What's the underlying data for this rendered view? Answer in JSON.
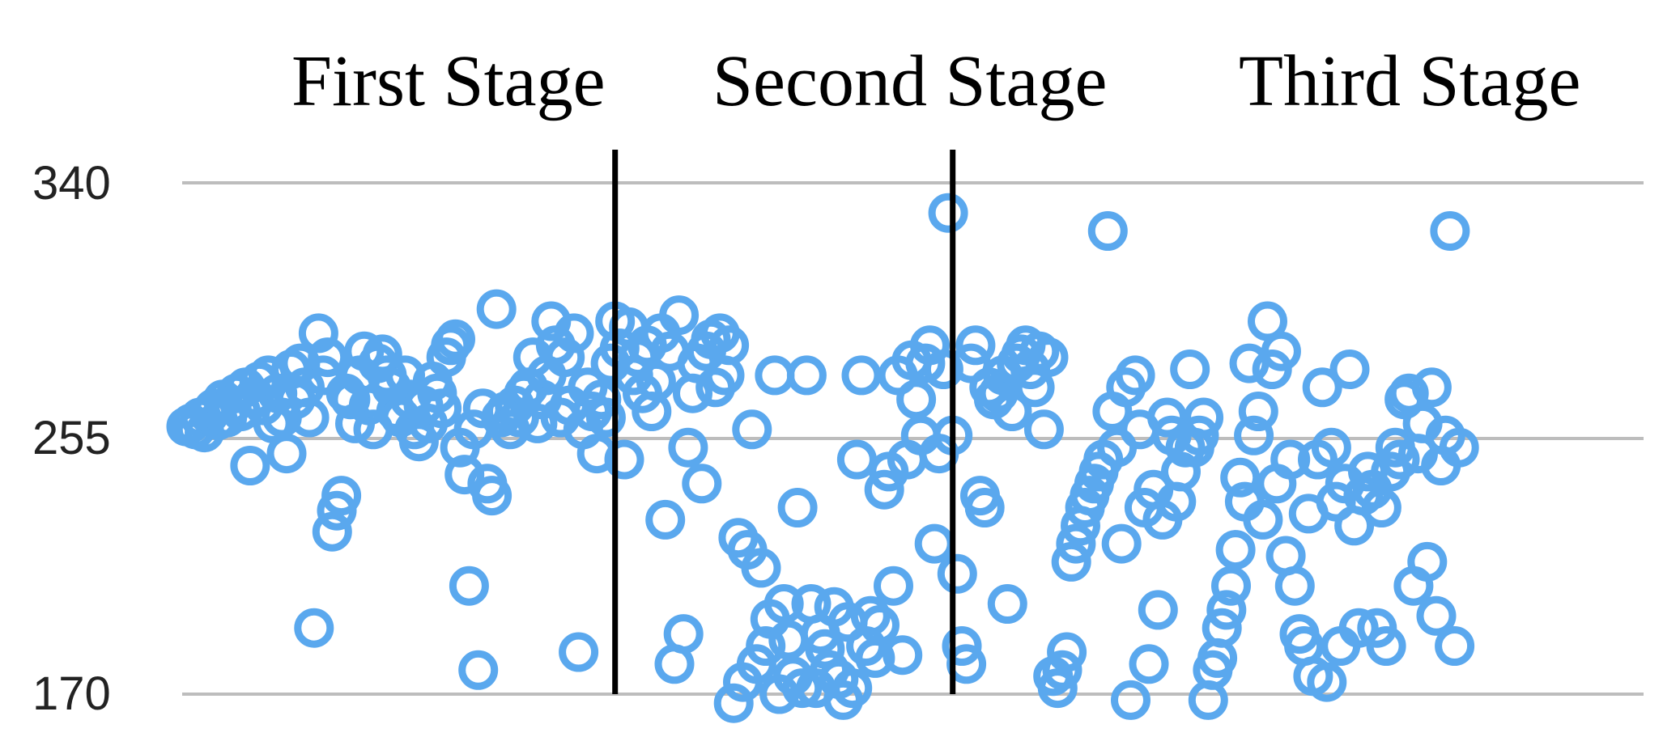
{
  "colors": {
    "point": "#5aa8ee",
    "grid": "#bdbdbd",
    "divider": "#000000"
  },
  "chart_data": {
    "type": "scatter",
    "title": "",
    "xlabel": "",
    "ylabel": "",
    "ylim": [
      170,
      340
    ],
    "y_ticks": [
      "340",
      "255",
      "170"
    ],
    "grid": "horizontal",
    "xlim": [
      0,
      307
    ],
    "stage_labels": [
      "First Stage",
      "Second Stage",
      "Third Stage"
    ],
    "stage_boundaries": [
      94,
      168
    ],
    "series": [
      {
        "values": [
          [
            0,
            259
          ],
          [
            1,
            260
          ],
          [
            2,
            258
          ],
          [
            3,
            262
          ],
          [
            4,
            257
          ],
          [
            5,
            263
          ],
          [
            6,
            265
          ],
          [
            7,
            261
          ],
          [
            8,
            268
          ],
          [
            9,
            262
          ],
          [
            10,
            266
          ],
          [
            11,
            270
          ],
          [
            12,
            264
          ],
          [
            13,
            272
          ],
          [
            14,
            246
          ],
          [
            15,
            269
          ],
          [
            16,
            274
          ],
          [
            17,
            266
          ],
          [
            18,
            276
          ],
          [
            19,
            260
          ],
          [
            20,
            270
          ],
          [
            21,
            262
          ],
          [
            22,
            250
          ],
          [
            23,
            278
          ],
          [
            24,
            268
          ],
          [
            25,
            280
          ],
          [
            26,
            272
          ],
          [
            27,
            262
          ],
          [
            28,
            192
          ],
          [
            29,
            290
          ],
          [
            30,
            276
          ],
          [
            31,
            282
          ],
          [
            32,
            224
          ],
          [
            33,
            231
          ],
          [
            34,
            236
          ],
          [
            35,
            270
          ],
          [
            36,
            268
          ],
          [
            37,
            260
          ],
          [
            38,
            276
          ],
          [
            39,
            284
          ],
          [
            40,
            266
          ],
          [
            41,
            258
          ],
          [
            42,
            280
          ],
          [
            43,
            283
          ],
          [
            44,
            276
          ],
          [
            45,
            272
          ],
          [
            46,
            264
          ],
          [
            47,
            262
          ],
          [
            48,
            276
          ],
          [
            49,
            268
          ],
          [
            50,
            258
          ],
          [
            51,
            254
          ],
          [
            52,
            266
          ],
          [
            53,
            260
          ],
          [
            54,
            274
          ],
          [
            55,
            270
          ],
          [
            56,
            265
          ],
          [
            57,
            282
          ],
          [
            58,
            286
          ],
          [
            59,
            288
          ],
          [
            60,
            252
          ],
          [
            61,
            243
          ],
          [
            62,
            206
          ],
          [
            63,
            258
          ],
          [
            64,
            178
          ],
          [
            65,
            265
          ],
          [
            66,
            240
          ],
          [
            67,
            236
          ],
          [
            68,
            298
          ],
          [
            69,
            262
          ],
          [
            70,
            264
          ],
          [
            71,
            258
          ],
          [
            72,
            266
          ],
          [
            73,
            262
          ],
          [
            74,
            270
          ],
          [
            75,
            272
          ],
          [
            76,
            282
          ],
          [
            77,
            260
          ],
          [
            78,
            268
          ],
          [
            79,
            276
          ],
          [
            80,
            294
          ],
          [
            81,
            286
          ],
          [
            82,
            262
          ],
          [
            83,
            282
          ],
          [
            84,
            266
          ],
          [
            85,
            290
          ],
          [
            86,
            184
          ],
          [
            87,
            258
          ],
          [
            88,
            272
          ],
          [
            89,
            264
          ],
          [
            90,
            250
          ],
          [
            91,
            268
          ],
          [
            92,
            262
          ],
          [
            93,
            280
          ],
          [
            94,
            294
          ],
          [
            95,
            285
          ],
          [
            96,
            248
          ],
          [
            97,
            292
          ],
          [
            98,
            276
          ],
          [
            99,
            282
          ],
          [
            100,
            270
          ],
          [
            101,
            286
          ],
          [
            102,
            264
          ],
          [
            103,
            274
          ],
          [
            104,
            290
          ],
          [
            105,
            228
          ],
          [
            106,
            284
          ],
          [
            107,
            180
          ],
          [
            108,
            296
          ],
          [
            109,
            190
          ],
          [
            110,
            252
          ],
          [
            111,
            270
          ],
          [
            112,
            280
          ],
          [
            113,
            240
          ],
          [
            114,
            284
          ],
          [
            115,
            288
          ],
          [
            116,
            272
          ],
          [
            117,
            290
          ],
          [
            118,
            276
          ],
          [
            119,
            286
          ],
          [
            120,
            167
          ],
          [
            121,
            222
          ],
          [
            122,
            174
          ],
          [
            123,
            218
          ],
          [
            124,
            258
          ],
          [
            125,
            180
          ],
          [
            126,
            212
          ],
          [
            127,
            186
          ],
          [
            128,
            195
          ],
          [
            129,
            276
          ],
          [
            130,
            170
          ],
          [
            131,
            200
          ],
          [
            132,
            188
          ],
          [
            133,
            176
          ],
          [
            134,
            232
          ],
          [
            135,
            172
          ],
          [
            136,
            276
          ],
          [
            137,
            200
          ],
          [
            138,
            172
          ],
          [
            139,
            190
          ],
          [
            140,
            185
          ],
          [
            141,
            178
          ],
          [
            142,
            199
          ],
          [
            143,
            175
          ],
          [
            144,
            168
          ],
          [
            145,
            194
          ],
          [
            146,
            172
          ],
          [
            147,
            248
          ],
          [
            148,
            276
          ],
          [
            149,
            186
          ],
          [
            150,
            196
          ],
          [
            151,
            182
          ],
          [
            152,
            193
          ],
          [
            153,
            238
          ],
          [
            154,
            244
          ],
          [
            155,
            206
          ],
          [
            156,
            276
          ],
          [
            157,
            183
          ],
          [
            158,
            248
          ],
          [
            159,
            281
          ],
          [
            160,
            268
          ],
          [
            161,
            256
          ],
          [
            162,
            280
          ],
          [
            163,
            286
          ],
          [
            164,
            220
          ],
          [
            165,
            250
          ],
          [
            166,
            278
          ],
          [
            167,
            330
          ],
          [
            168,
            256
          ],
          [
            169,
            210
          ],
          [
            170,
            186
          ],
          [
            171,
            180
          ],
          [
            172,
            280
          ],
          [
            173,
            286
          ],
          [
            174,
            236
          ],
          [
            175,
            232
          ],
          [
            176,
            272
          ],
          [
            177,
            268
          ],
          [
            178,
            270
          ],
          [
            179,
            276
          ],
          [
            180,
            200
          ],
          [
            181,
            264
          ],
          [
            182,
            280
          ],
          [
            183,
            283
          ],
          [
            184,
            286
          ],
          [
            185,
            278
          ],
          [
            186,
            272
          ],
          [
            187,
            284
          ],
          [
            188,
            258
          ],
          [
            189,
            282
          ],
          [
            190,
            176
          ],
          [
            191,
            172
          ],
          [
            192,
            178
          ],
          [
            193,
            184
          ],
          [
            194,
            214
          ],
          [
            195,
            220
          ],
          [
            196,
            226
          ],
          [
            197,
            232
          ],
          [
            198,
            236
          ],
          [
            199,
            240
          ],
          [
            200,
            244
          ],
          [
            201,
            248
          ],
          [
            202,
            324
          ],
          [
            203,
            264
          ],
          [
            204,
            252
          ],
          [
            205,
            220
          ],
          [
            206,
            272
          ],
          [
            207,
            168
          ],
          [
            208,
            276
          ],
          [
            209,
            258
          ],
          [
            210,
            232
          ],
          [
            211,
            180
          ],
          [
            212,
            238
          ],
          [
            213,
            198
          ],
          [
            214,
            228
          ],
          [
            215,
            262
          ],
          [
            216,
            256
          ],
          [
            217,
            234
          ],
          [
            218,
            244
          ],
          [
            219,
            252
          ],
          [
            220,
            278
          ],
          [
            221,
            252
          ],
          [
            222,
            256
          ],
          [
            223,
            262
          ],
          [
            224,
            168
          ],
          [
            225,
            178
          ],
          [
            226,
            182
          ],
          [
            227,
            192
          ],
          [
            228,
            198
          ],
          [
            229,
            206
          ],
          [
            230,
            218
          ],
          [
            231,
            242
          ],
          [
            232,
            234
          ],
          [
            233,
            280
          ],
          [
            234,
            256
          ],
          [
            235,
            264
          ],
          [
            236,
            228
          ],
          [
            237,
            294
          ],
          [
            238,
            278
          ],
          [
            239,
            240
          ],
          [
            240,
            284
          ],
          [
            241,
            216
          ],
          [
            242,
            248
          ],
          [
            243,
            206
          ],
          [
            244,
            190
          ],
          [
            245,
            186
          ],
          [
            246,
            230
          ],
          [
            247,
            176
          ],
          [
            248,
            248
          ],
          [
            249,
            272
          ],
          [
            250,
            174
          ],
          [
            251,
            252
          ],
          [
            252,
            234
          ],
          [
            253,
            186
          ],
          [
            254,
            240
          ],
          [
            255,
            278
          ],
          [
            256,
            226
          ],
          [
            257,
            192
          ],
          [
            258,
            236
          ],
          [
            259,
            244
          ],
          [
            260,
            238
          ],
          [
            261,
            192
          ],
          [
            262,
            232
          ],
          [
            263,
            186
          ],
          [
            264,
            244
          ],
          [
            265,
            252
          ],
          [
            266,
            248
          ],
          [
            267,
            268
          ],
          [
            268,
            270
          ],
          [
            269,
            206
          ],
          [
            270,
            250
          ],
          [
            271,
            260
          ],
          [
            272,
            214
          ],
          [
            273,
            272
          ],
          [
            274,
            196
          ],
          [
            275,
            246
          ],
          [
            276,
            256
          ],
          [
            277,
            324
          ],
          [
            278,
            186
          ],
          [
            279,
            252
          ]
        ]
      }
    ]
  }
}
